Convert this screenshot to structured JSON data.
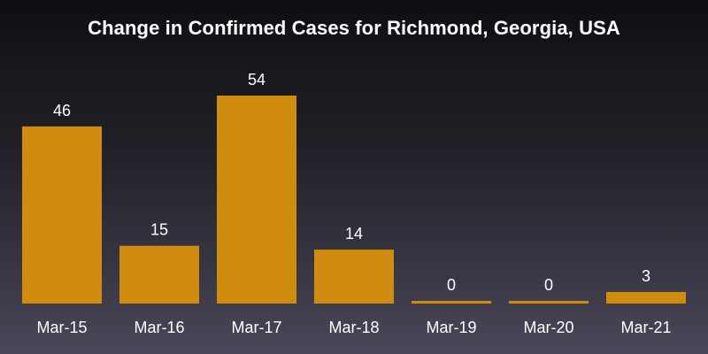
{
  "chart_data": {
    "type": "bar",
    "title": "Change in Confirmed Cases for Richmond, Georgia, USA",
    "categories": [
      "Mar-15",
      "Mar-16",
      "Mar-17",
      "Mar-18",
      "Mar-19",
      "Mar-20",
      "Mar-21"
    ],
    "values": [
      46,
      15,
      54,
      14,
      0,
      0,
      3
    ],
    "xlabel": "",
    "ylabel": "",
    "ylim": [
      0,
      58
    ],
    "grid": false,
    "legend": "none",
    "bar_color": "#d08c0f"
  }
}
